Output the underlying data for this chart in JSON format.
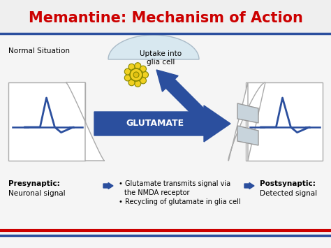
{
  "title": "Memantine: Mechanism of Action",
  "title_color": "#CC0000",
  "title_fontsize": 15,
  "bg_color": "#F5F5F5",
  "border_color_top": "#2B4F9E",
  "border_color_bottom1": "#CC0000",
  "border_color_bottom2": "#2B4F9E",
  "normal_situation_text": "Normal Situation",
  "uptake_text": "Uptake into\nglia cell",
  "glutamate_text": "GLUTAMATE",
  "arrow_color": "#2B4F9E",
  "signal_color": "#2B4F9E",
  "glia_fill": "#D8E8F0",
  "receptor_fill": "#C8D4DC",
  "receptor_edge": "#999999",
  "bottom_label1_bold": "Presynaptic:",
  "bottom_label1_normal": "Neuronal signal",
  "bottom_label2_bold": "Postsynaptic:",
  "bottom_label2_normal": "Detected signal",
  "bullet1a": "Glutamate transmits signal via",
  "bullet1b": "the NMDA receptor",
  "bullet2": "Recycling of glutamate in glia cell",
  "neuron_edge": "#AAAAAA",
  "neuron_bg": "#FFFFFF"
}
